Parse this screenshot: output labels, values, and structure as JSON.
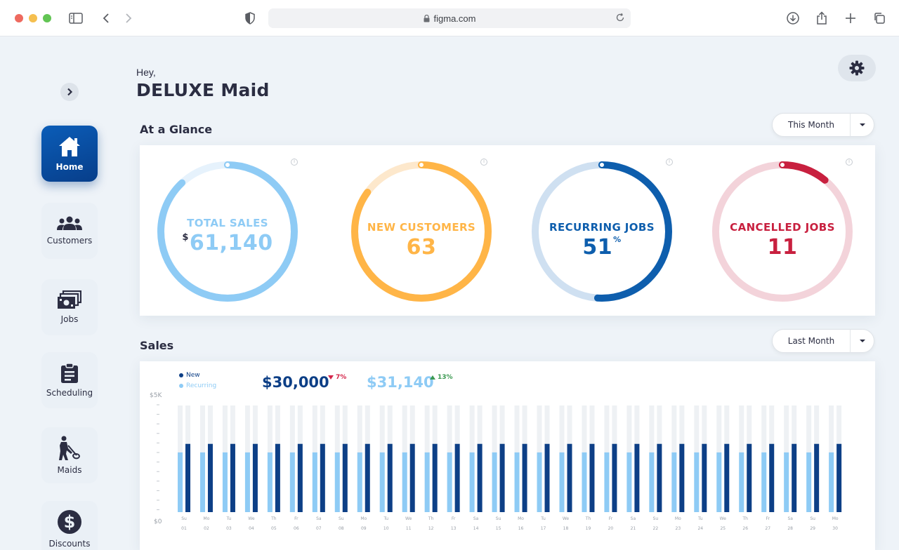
{
  "browser": {
    "url": "figma.com"
  },
  "greeting": {
    "hey": "Hey,",
    "name": "DELUXE Maid"
  },
  "sidebar": {
    "items": [
      {
        "label": "Home",
        "icon": "home-icon",
        "active": true
      },
      {
        "label": "Customers",
        "icon": "customers-icon",
        "active": false
      },
      {
        "label": "Jobs",
        "icon": "jobs-icon",
        "active": false
      },
      {
        "label": "Scheduling",
        "icon": "scheduling-icon",
        "active": false
      },
      {
        "label": "Maids",
        "icon": "maids-icon",
        "active": false
      },
      {
        "label": "Discounts",
        "icon": "discounts-icon",
        "active": false
      }
    ]
  },
  "glance": {
    "title": "At a Glance",
    "period": "This Month",
    "metrics": [
      {
        "label": "TOTAL SALES",
        "prefix": "$",
        "value": "61,140",
        "suffix": "",
        "color": "#8ecbf5",
        "fill": 0.88
      },
      {
        "label": "NEW CUSTOMERS",
        "prefix": "",
        "value": "63",
        "suffix": "",
        "color": "#ffb547",
        "fill": 0.85
      },
      {
        "label": "RECURRING JOBS",
        "prefix": "",
        "value": "51",
        "suffix": "%",
        "color": "#0e5ead",
        "fill": 0.51
      },
      {
        "label": "CANCELLED JOBS",
        "prefix": "",
        "value": "11",
        "suffix": "",
        "color": "#c8203f",
        "fill": 0.11
      }
    ]
  },
  "sales": {
    "title": "Sales",
    "period": "Last Month",
    "legend": [
      {
        "label": "New",
        "color": "#0d3f86"
      },
      {
        "label": "Recurring",
        "color": "#8ecbf5"
      }
    ],
    "new_total": "$30,000",
    "new_delta": "7%",
    "recurring_total": "$31,140",
    "recurring_delta": "13%",
    "colors": {
      "new": "#0d3f86",
      "recurring": "#8ecbf5",
      "down": "#d4264a",
      "up": "#3c9a52"
    }
  },
  "chart_data": {
    "type": "bar",
    "ylabel_top": "$5K",
    "ylabel_bottom": "$0",
    "ylim": [
      0,
      5000
    ],
    "days": [
      "Su",
      "Mo",
      "Tu",
      "We",
      "Th",
      "Fr",
      "Sa",
      "Su",
      "Mo",
      "Tu",
      "We",
      "Th",
      "Fr",
      "Sa",
      "Su",
      "Mo",
      "Tu",
      "We",
      "Th",
      "Fr",
      "Sa",
      "Su",
      "Mo",
      "Tu",
      "We",
      "Th",
      "Fr",
      "Sa",
      "Su",
      "Mo"
    ],
    "categories": [
      "01",
      "02",
      "03",
      "04",
      "05",
      "06",
      "07",
      "08",
      "09",
      "10",
      "11",
      "12",
      "13",
      "14",
      "15",
      "16",
      "17",
      "18",
      "19",
      "20",
      "21",
      "22",
      "23",
      "24",
      "25",
      "26",
      "27",
      "28",
      "29",
      "30"
    ],
    "series": [
      {
        "name": "Recurring",
        "values": [
          2800,
          2800,
          2800,
          2800,
          2800,
          2800,
          2800,
          2800,
          2800,
          2800,
          2800,
          2800,
          2800,
          2800,
          2800,
          2800,
          2800,
          2800,
          2800,
          2800,
          2800,
          2800,
          2800,
          2800,
          2800,
          2800,
          2800,
          2800,
          2800,
          2800
        ]
      },
      {
        "name": "New",
        "values": [
          3200,
          3200,
          3200,
          3200,
          3200,
          3200,
          3200,
          3200,
          3200,
          3200,
          3200,
          3200,
          3200,
          3200,
          3200,
          3200,
          3200,
          3200,
          3200,
          3200,
          3200,
          3200,
          3200,
          3200,
          3200,
          3200,
          3200,
          3200,
          3200,
          3200
        ]
      }
    ]
  }
}
